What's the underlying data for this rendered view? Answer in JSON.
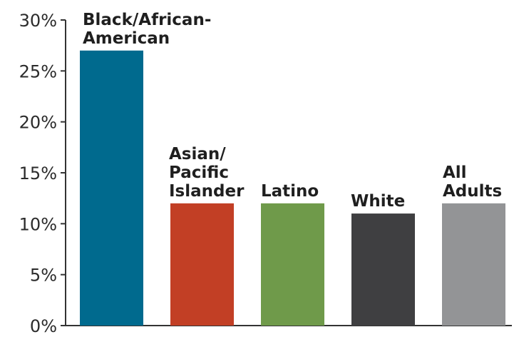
{
  "chart_data": {
    "type": "bar",
    "title": "",
    "xlabel": "",
    "ylabel": "",
    "ylim": [
      0,
      30
    ],
    "yticks": [
      0,
      5,
      10,
      15,
      20,
      25,
      30
    ],
    "ytick_labels": [
      "0%",
      "5%",
      "10%",
      "15%",
      "20%",
      "25%",
      "30%"
    ],
    "grid": false,
    "legend": "none",
    "categories": [
      "Black/African-American",
      "Asian/Pacific Islander",
      "Latino",
      "White",
      "All Adults"
    ],
    "category_label_lines": [
      [
        "Black/African-",
        "American"
      ],
      [
        "Asian/",
        "Pacific",
        "Islander"
      ],
      [
        "Latino"
      ],
      [
        "White"
      ],
      [
        "All",
        "Adults"
      ]
    ],
    "values": [
      27,
      12,
      12,
      11,
      12
    ],
    "colors": [
      "#006a8e",
      "#c23f25",
      "#6f9a4a",
      "#3f3f41",
      "#939496"
    ]
  }
}
